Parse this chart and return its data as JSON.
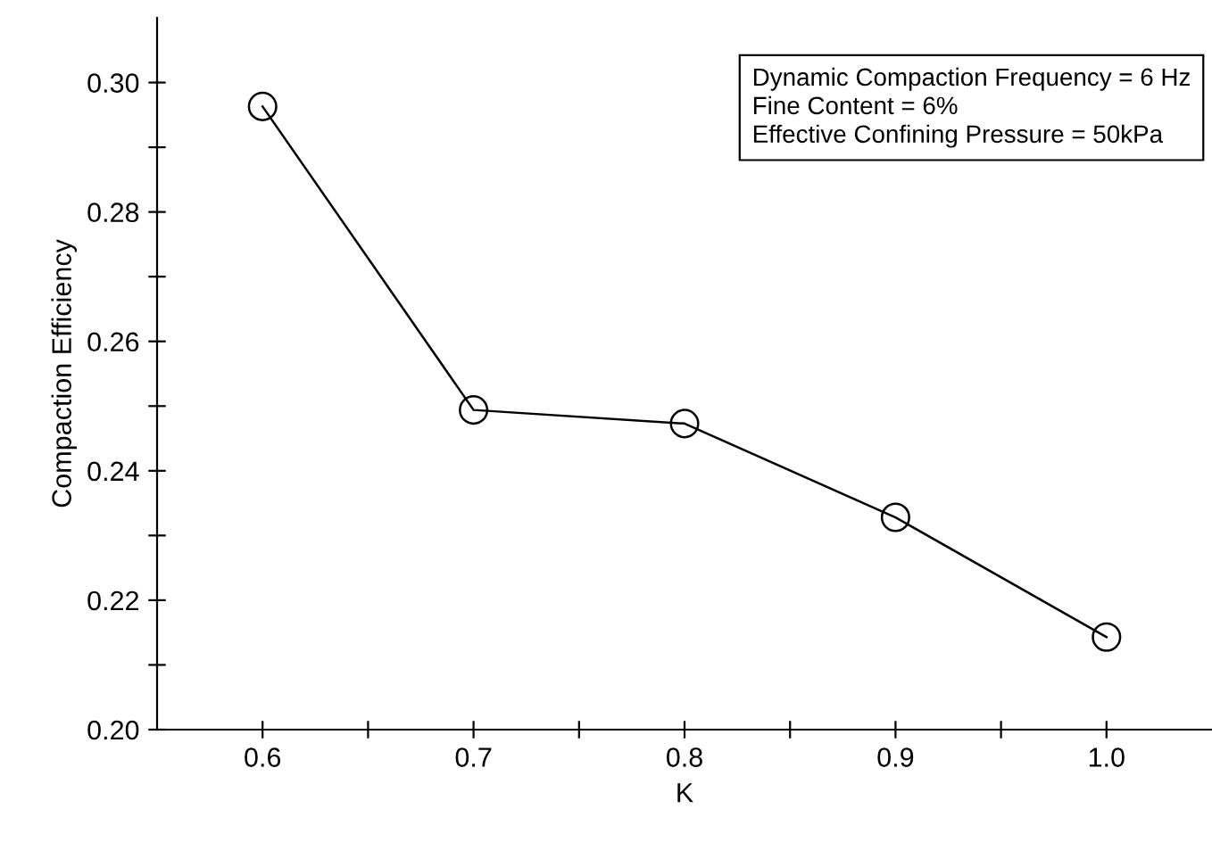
{
  "chart_data": {
    "type": "line",
    "xlabel": "K",
    "ylabel": "Compaction Efficiency",
    "x": [
      0.6,
      0.7,
      0.8,
      0.9,
      1.0
    ],
    "series": [
      {
        "color": "#000000",
        "values": [
          0.2963,
          0.2494,
          0.2473,
          0.2328,
          0.2143
        ]
      }
    ],
    "xlim": [
      0.55,
      1.05
    ],
    "ylim": [
      0.2,
      0.31
    ],
    "xticks": [
      {
        "value": 0.6,
        "label": "0.6"
      },
      {
        "value": 0.65,
        "label": null
      },
      {
        "value": 0.7,
        "label": "0.7"
      },
      {
        "value": 0.75,
        "label": null
      },
      {
        "value": 0.8,
        "label": "0.8"
      },
      {
        "value": 0.85,
        "label": null
      },
      {
        "value": 0.9,
        "label": "0.9"
      },
      {
        "value": 0.95,
        "label": null
      },
      {
        "value": 1.0,
        "label": "1.0"
      }
    ],
    "yticks": [
      {
        "value": 0.2,
        "label": "0.20"
      },
      {
        "value": 0.21,
        "label": null
      },
      {
        "value": 0.22,
        "label": "0.22"
      },
      {
        "value": 0.23,
        "label": null
      },
      {
        "value": 0.24,
        "label": "0.24"
      },
      {
        "value": 0.25,
        "label": null
      },
      {
        "value": 0.26,
        "label": "0.26"
      },
      {
        "value": 0.27,
        "label": null
      },
      {
        "value": 0.28,
        "label": "0.28"
      },
      {
        "value": 0.29,
        "label": null
      },
      {
        "value": 0.3,
        "label": "0.30"
      }
    ],
    "annotations": [
      "Dynamic Compaction Frequency = 6 Hz\nFine Content = 6%\nEffective Confining Pressure = 50kPa"
    ],
    "marker": "circle",
    "line_style": "solid",
    "grid": false,
    "legend": false
  }
}
